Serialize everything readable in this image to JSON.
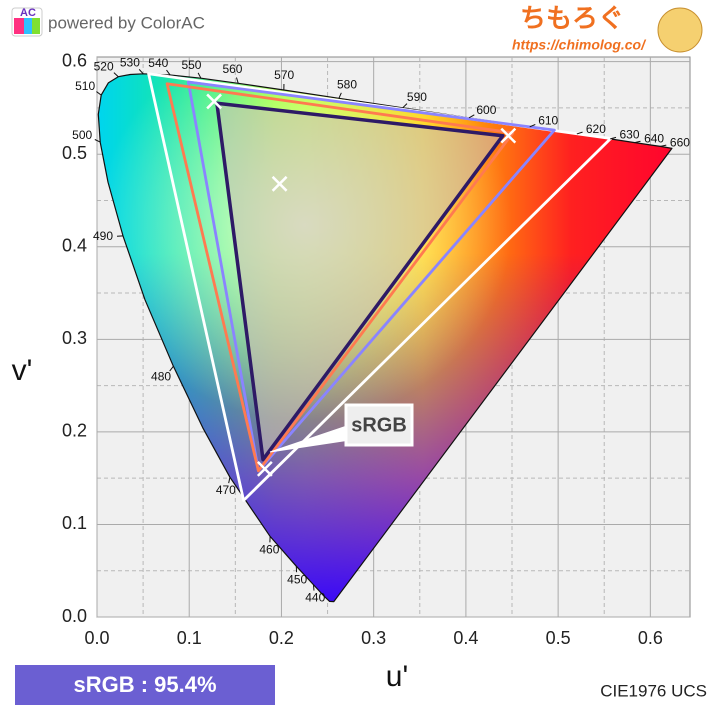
{
  "header": {
    "logo": "AC",
    "brand": "powered by ColorAC",
    "site": "ちもろぐ",
    "url": "https://chimolog.co/"
  },
  "chart_data": {
    "type": "line",
    "x_label": "u'",
    "y_label": "v'",
    "caption": "CIE1976 UCS",
    "callout": "sRGB",
    "coverage_label": "sRGB : 95.4%",
    "xlim": [
      0,
      0.643
    ],
    "ylim": [
      0,
      0.605
    ],
    "xticks": [
      {
        "value": 0,
        "label": "0.0"
      },
      0.1,
      0.2,
      0.3,
      0.4,
      0.5,
      0.6
    ],
    "yticks": [
      {
        "value": 0,
        "label": "0.0"
      },
      0.1,
      0.2,
      0.3,
      0.4,
      0.5,
      0.6
    ],
    "minor_xticks": [
      0.05,
      0.15,
      0.25,
      0.35,
      0.45,
      0.55
    ],
    "minor_yticks": [
      0.05,
      0.15,
      0.25,
      0.35,
      0.45,
      0.55
    ],
    "grid": true,
    "series": [
      {
        "color": "#111111",
        "closed": true,
        "x": [
          0.2568,
          0.2522,
          0.2461,
          0.2347,
          0.2161,
          0.1877,
          0.1441,
          0.1147,
          0.0828,
          0.0521,
          0.0282,
          0.0119,
          0.0035,
          0.0014,
          0.0046,
          0.0123,
          0.0231,
          0.036,
          0.0501,
          0.0792,
          0.1127,
          0.1531,
          0.2026,
          0.2623,
          0.3315,
          0.4035,
          0.4692,
          0.5203,
          0.5565,
          0.583,
          0.6005,
          0.6109,
          0.6234
        ],
        "values": [
          0.0166,
          0.0169,
          0.0226,
          0.035,
          0.0549,
          0.0871,
          0.151,
          0.2044,
          0.2708,
          0.3427,
          0.4117,
          0.4698,
          0.5131,
          0.5431,
          0.5638,
          0.577,
          0.5837,
          0.5861,
          0.5868,
          0.5856,
          0.5821,
          0.5766,
          0.5694,
          0.5604,
          0.5501,
          0.5393,
          0.5296,
          0.5219,
          0.5165,
          0.5125,
          0.5099,
          0.5084,
          0.5063
        ],
        "wavelengths": [
          null,
          null,
          null,
          440,
          450,
          460,
          470,
          null,
          480,
          null,
          490,
          null,
          500,
          null,
          510,
          null,
          520,
          null,
          530,
          540,
          550,
          560,
          570,
          580,
          590,
          600,
          610,
          620,
          630,
          640,
          null,
          660,
          null
        ]
      },
      {
        "color": "#ffffff",
        "closed": true,
        "x": [
          0.056,
          0.557,
          0.159
        ],
        "values": [
          0.587,
          0.517,
          0.126
        ]
      },
      {
        "color": "#8a84ff",
        "closed": true,
        "x": [
          0.099,
          0.496,
          0.175
        ],
        "values": [
          0.578,
          0.526,
          0.158
        ]
      },
      {
        "color": "#ff7a50",
        "closed": true,
        "x": [
          0.076,
          0.451,
          0.175
        ],
        "values": [
          0.576,
          0.523,
          0.158
        ]
      },
      {
        "color": "#2e1a66",
        "closed": true,
        "fill": "#c9c2b4",
        "x": [
          0.13,
          0.44,
          0.18
        ],
        "values": [
          0.555,
          0.52,
          0.17
        ]
      }
    ],
    "markers": {
      "color": "#ffffff",
      "x": [
        0.127,
        0.446,
        0.182,
        0.198
      ],
      "values": [
        0.557,
        0.52,
        0.16,
        0.468
      ]
    }
  }
}
